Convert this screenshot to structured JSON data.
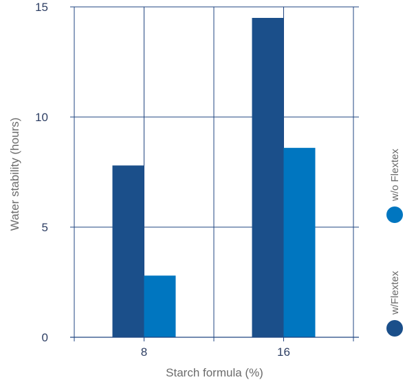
{
  "chart_data": {
    "type": "bar",
    "categories": [
      "8",
      "16"
    ],
    "series": [
      {
        "name": "w/Flextex",
        "values": [
          7.8,
          14.5
        ],
        "color": "#1b4f8a"
      },
      {
        "name": "w/o Flextex",
        "values": [
          2.8,
          8.6
        ],
        "color": "#0076c0"
      }
    ],
    "xlabel": "Starch formula (%)",
    "ylabel": "Water stability (hours)",
    "ylim": [
      0,
      15
    ],
    "yticks": [
      0,
      5,
      10,
      15
    ],
    "grid": true,
    "legend_position": "right",
    "axis_color": "#1f4480"
  }
}
